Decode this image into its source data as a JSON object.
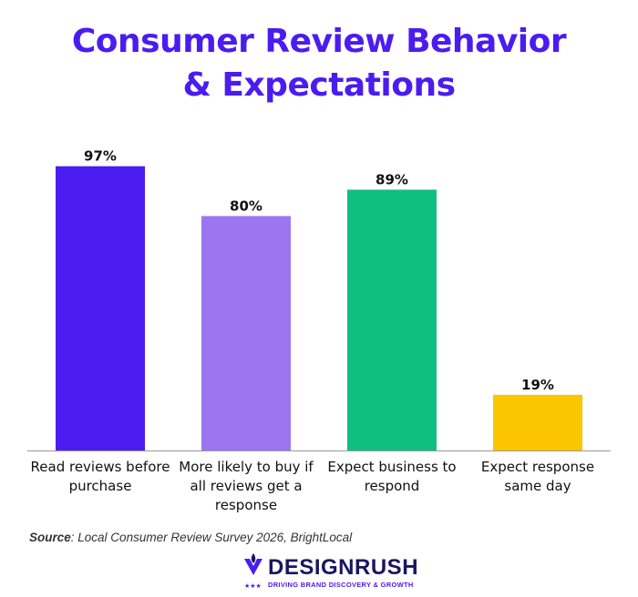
{
  "title_line1": "Consumer Review Behavior",
  "title_line2": "& Expectations",
  "source_label": "Source",
  "source_text": ": Local Consumer Review Survey 2026, BrightLocal",
  "brand": {
    "name": "DESIGNRUSH",
    "tagline": "DRIVING BRAND DISCOVERY & GROWTH",
    "logo_icon": "designrush-logo-icon"
  },
  "chart_data": {
    "type": "bar",
    "categories": [
      [
        "Read reviews before",
        "purchase"
      ],
      [
        "More likely to buy if",
        "all reviews get a",
        "response"
      ],
      [
        "Expect business to",
        "respond"
      ],
      [
        "Expect response",
        "same day"
      ]
    ],
    "values": [
      97,
      80,
      89,
      19
    ],
    "value_labels": [
      "97%",
      "80%",
      "89%",
      "19%"
    ],
    "colors": [
      "#4b1cf0",
      "#9b76f0",
      "#0fbf80",
      "#fbc500"
    ],
    "ylim": [
      0,
      100
    ],
    "grid": false
  }
}
